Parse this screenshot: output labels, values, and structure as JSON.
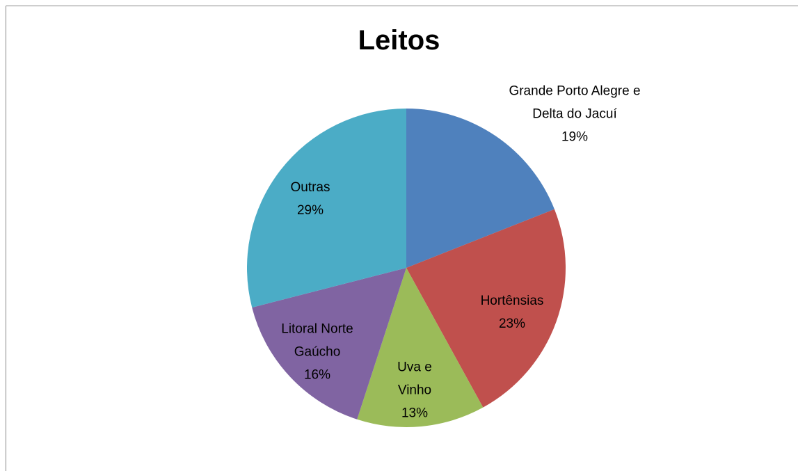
{
  "chart_data": {
    "type": "pie",
    "title": "Leitos",
    "categories": [
      "Grande Porto Alegre e Delta do Jacuí",
      "Hortênsias",
      "Uva e Vinho",
      "Litoral Norte Gaúcho",
      "Outras"
    ],
    "values": [
      19,
      23,
      13,
      16,
      29
    ],
    "value_labels": [
      "19%",
      "23%",
      "13%",
      "16%",
      "29%"
    ],
    "colors": [
      "#4f81bd",
      "#c0504d",
      "#9bbb59",
      "#8064a2",
      "#4bacc6"
    ]
  }
}
